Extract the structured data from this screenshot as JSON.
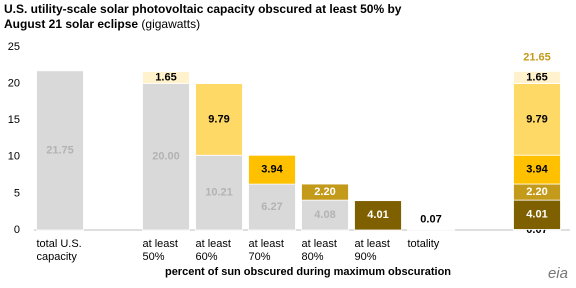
{
  "chart_data": {
    "type": "stacked_bar",
    "title": "U.S. utility-scale solar photovoltaic capacity obscured at least 50% by August 21 solar eclipse",
    "subtitle": "(gigawatts)",
    "x_label": "percent of sun obscured during maximum obscuration",
    "source_logo": "eia",
    "categories": [
      "total U.S. capacity",
      null,
      "at least 50%",
      "at least 60%",
      "at least 70%",
      "at least 80%",
      "at least 90%",
      "totality",
      null,
      null
    ],
    "ylim": [
      0,
      25
    ],
    "yticks": [
      0,
      5,
      10,
      15,
      20,
      25
    ],
    "grid": false,
    "series": [
      {
        "color": "#d9d9d9",
        "label_color": "#b3b3b3",
        "values": [
          21.75,
          null,
          20.0,
          10.21,
          6.27,
          4.08,
          null,
          null,
          null,
          null
        ],
        "value_labels": [
          "21.75",
          null,
          "20.00",
          "10.21",
          "6.27",
          "4.08",
          null,
          null,
          null,
          null
        ]
      },
      {
        "color": "#3b2f00",
        "label_color": "#000000",
        "values": [
          null,
          null,
          null,
          null,
          null,
          null,
          null,
          0.07,
          null,
          0.07
        ],
        "value_labels": [
          null,
          null,
          null,
          null,
          null,
          null,
          null,
          "0.07",
          null,
          "0.07"
        ]
      },
      {
        "color": "#7f6000",
        "label_color": "#ffffff",
        "values": [
          null,
          null,
          null,
          null,
          null,
          null,
          4.01,
          null,
          null,
          4.01
        ],
        "value_labels": [
          null,
          null,
          null,
          null,
          null,
          null,
          "4.01",
          null,
          null,
          "4.01"
        ]
      },
      {
        "color": "#c49a1a",
        "label_color": "#ffffff",
        "values": [
          null,
          null,
          null,
          null,
          null,
          2.2,
          null,
          null,
          null,
          2.2
        ],
        "value_labels": [
          null,
          null,
          null,
          null,
          null,
          "2.20",
          null,
          null,
          null,
          "2.20"
        ]
      },
      {
        "color": "#ffc000",
        "label_color": "#000000",
        "values": [
          null,
          null,
          null,
          null,
          3.94,
          null,
          null,
          null,
          null,
          3.94
        ],
        "value_labels": [
          null,
          null,
          null,
          null,
          "3.94",
          null,
          null,
          null,
          null,
          "3.94"
        ]
      },
      {
        "color": "#ffd966",
        "label_color": "#000000",
        "values": [
          null,
          null,
          null,
          9.79,
          null,
          null,
          null,
          null,
          null,
          9.79
        ],
        "value_labels": [
          null,
          null,
          null,
          "9.79",
          null,
          null,
          null,
          null,
          null,
          "9.79"
        ]
      },
      {
        "color": "#fff2cc",
        "label_color": "#000000",
        "values": [
          null,
          null,
          1.65,
          null,
          null,
          null,
          null,
          null,
          null,
          1.65
        ],
        "value_labels": [
          null,
          null,
          "1.65",
          null,
          null,
          null,
          null,
          null,
          null,
          "1.65"
        ]
      }
    ],
    "total_values": [
      null,
      null,
      null,
      null,
      null,
      null,
      null,
      null,
      null,
      21.65
    ],
    "total_color": "#c49a1a"
  }
}
